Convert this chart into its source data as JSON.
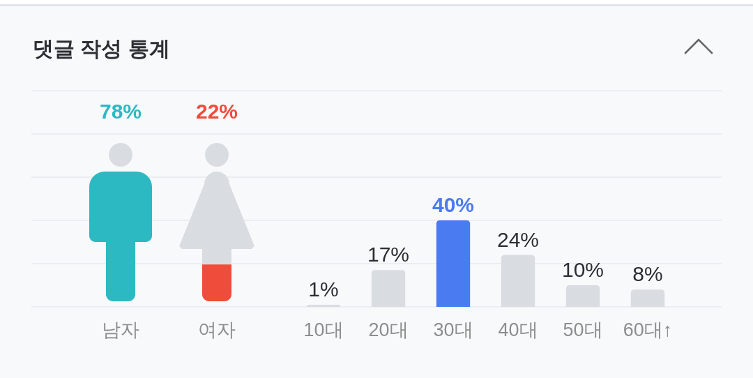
{
  "chart_data": [
    {
      "type": "bar",
      "title": "댓글 작성 통계",
      "categories": [
        "남자",
        "여자"
      ],
      "values": [
        78,
        22
      ],
      "colors": [
        "#2cb9c2",
        "#f04c3b"
      ],
      "value_labels": [
        "78%",
        "22%"
      ]
    },
    {
      "type": "bar",
      "categories": [
        "10대",
        "20대",
        "30대",
        "40대",
        "50대",
        "60대↑"
      ],
      "values": [
        1,
        17,
        40,
        24,
        10,
        8
      ],
      "colors": [
        "#d9dde1",
        "#d9dde1",
        "#4a7bf0",
        "#d9dde1",
        "#d9dde1",
        "#d9dde1"
      ],
      "value_labels": [
        "1%",
        "17%",
        "40%",
        "24%",
        "10%",
        "8%"
      ],
      "ylim": [
        0,
        100
      ],
      "yticks": [
        {
          "value": 0,
          "label": null
        },
        {
          "value": 20,
          "label": null
        },
        {
          "value": 40,
          "label": null
        },
        {
          "value": 60,
          "label": null
        },
        {
          "value": 80,
          "label": null
        },
        {
          "value": 100,
          "label": null
        }
      ],
      "grid": "y",
      "tick_labels": "x"
    }
  ]
}
